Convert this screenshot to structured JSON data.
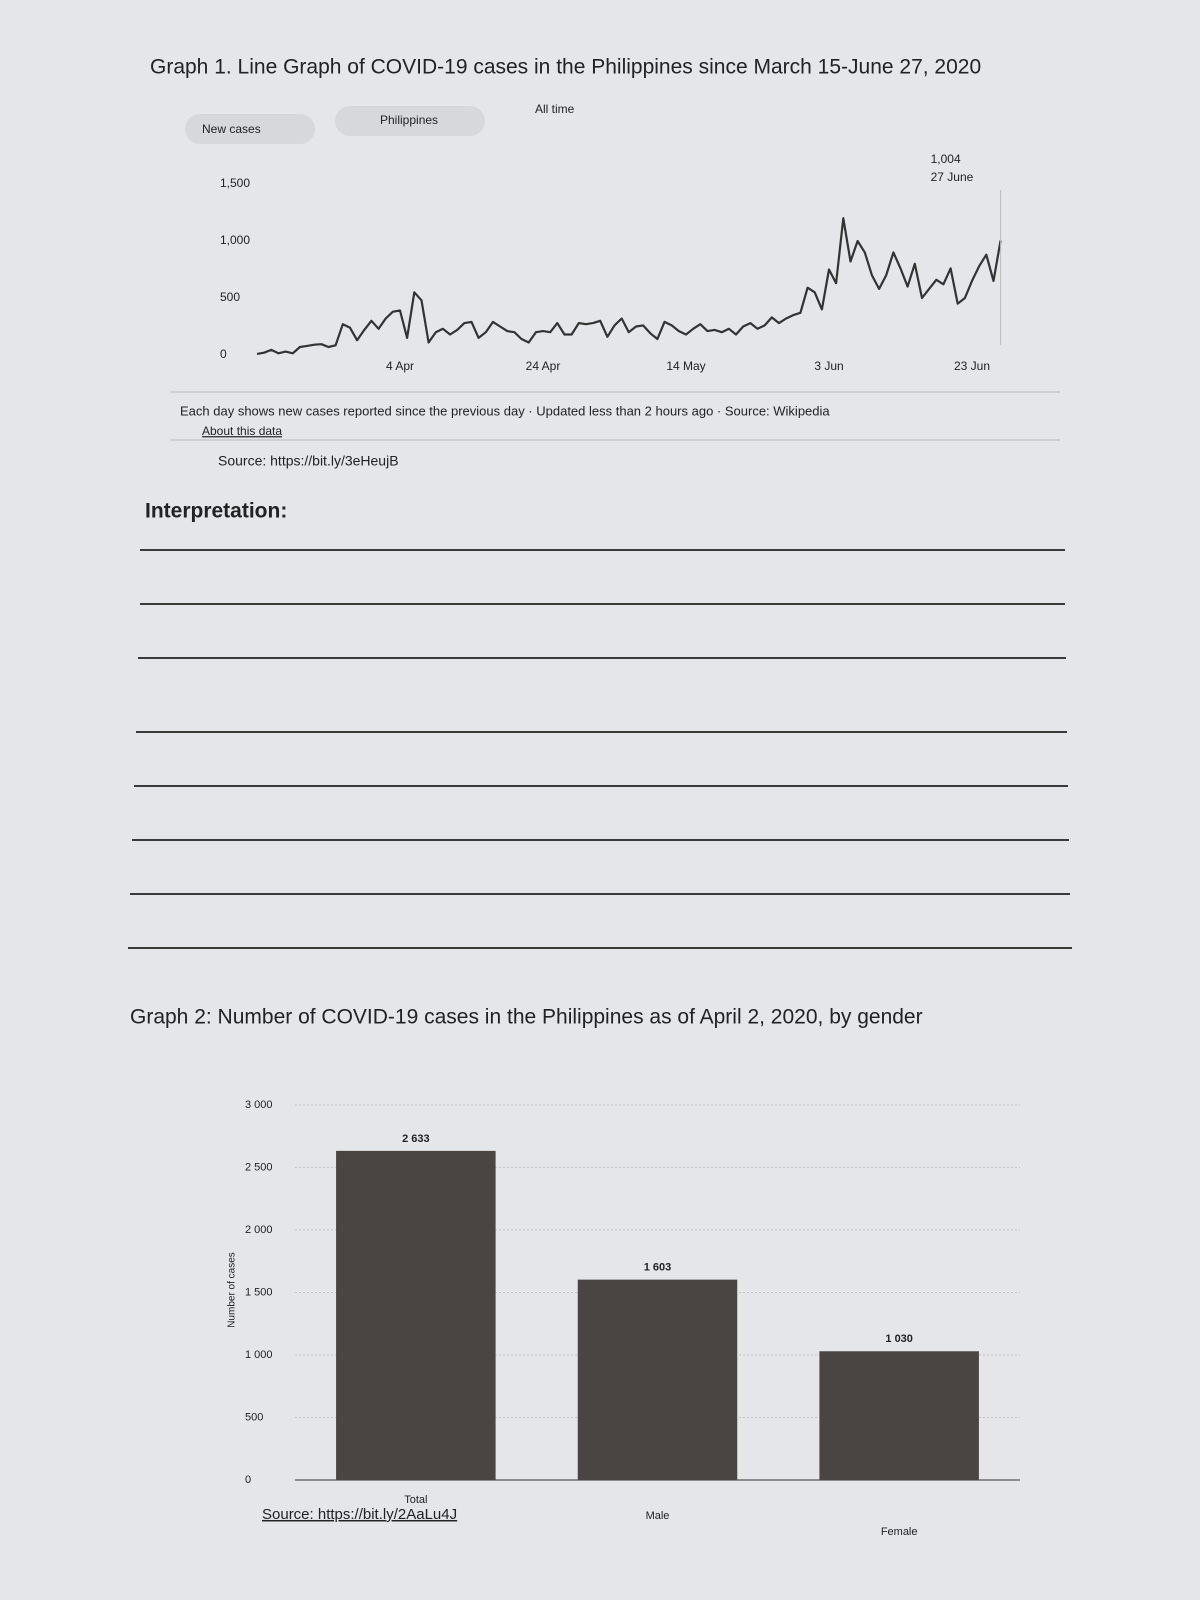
{
  "chart_data": [
    {
      "type": "line",
      "title": "Graph 1. Line Graph of COVID-19 cases in the Philippines since March 15-June 27, 2020",
      "controls": [
        "New cases",
        "Philippines",
        "All time"
      ],
      "categories": [
        null,
        null,
        null,
        null,
        null,
        null,
        null,
        null,
        null,
        null,
        null,
        null,
        null,
        null,
        null,
        null,
        null,
        null,
        null,
        null,
        "4 Apr",
        null,
        null,
        null,
        null,
        null,
        null,
        null,
        null,
        null,
        null,
        null,
        null,
        null,
        null,
        null,
        null,
        null,
        null,
        null,
        "24 Apr",
        null,
        null,
        null,
        null,
        null,
        null,
        null,
        null,
        null,
        null,
        null,
        null,
        null,
        null,
        null,
        null,
        null,
        null,
        null,
        "14 May",
        null,
        null,
        null,
        null,
        null,
        null,
        null,
        null,
        null,
        null,
        null,
        null,
        null,
        null,
        null,
        null,
        null,
        null,
        null,
        "3 Jun",
        null,
        null,
        null,
        null,
        null,
        null,
        null,
        null,
        null,
        null,
        null,
        null,
        null,
        null,
        null,
        null,
        null,
        null,
        null,
        "23 Jun",
        null,
        null,
        null,
        null
      ],
      "values": [
        10,
        20,
        45,
        15,
        30,
        15,
        70,
        80,
        90,
        95,
        70,
        85,
        270,
        240,
        130,
        220,
        300,
        230,
        320,
        380,
        390,
        150,
        550,
        480,
        110,
        200,
        230,
        180,
        220,
        280,
        290,
        150,
        200,
        290,
        250,
        210,
        200,
        140,
        110,
        200,
        210,
        200,
        280,
        180,
        180,
        280,
        270,
        280,
        300,
        160,
        260,
        320,
        200,
        250,
        260,
        190,
        140,
        290,
        260,
        210,
        180,
        230,
        270,
        210,
        220,
        200,
        230,
        180,
        250,
        280,
        230,
        260,
        330,
        280,
        320,
        350,
        370,
        590,
        550,
        400,
        750,
        630,
        1200,
        820,
        1000,
        900,
        700,
        580,
        700,
        900,
        760,
        600,
        800,
        500,
        580,
        660,
        620,
        760,
        450,
        500,
        650,
        780,
        880,
        650,
        1004
      ],
      "color": "#333333",
      "ylim": [
        0,
        1750
      ],
      "yticks": [
        0,
        500,
        {
          "value": 1000,
          "label": "1,000"
        },
        {
          "value": 1500,
          "label": "1,500"
        }
      ],
      "annotation": {
        "value_label": "1,004",
        "date": "27 June"
      },
      "note": "Each day shows new cases reported since the previous day · Updated less than 2 hours ago · Source: Wikipedia",
      "about": "About this data",
      "source": "Source: https://bit.ly/3eHeujB"
    },
    {
      "type": "bar",
      "title": "Graph 2: Number of COVID-19 cases in the Philippines as of April 2, 2020, by gender",
      "y_label": "Number of cases",
      "categories": [
        "Total",
        "Male",
        "Female"
      ],
      "values": [
        2633,
        1603,
        1030
      ],
      "value_labels": [
        "2 633",
        "1 603",
        "1 030"
      ],
      "color": "#4a4543",
      "ylim": [
        0,
        3000
      ],
      "yticks": [
        0,
        500,
        {
          "value": 1000,
          "label": "1 000"
        },
        {
          "value": 1500,
          "label": "1 500"
        },
        {
          "value": 2000,
          "label": "2 000"
        },
        {
          "value": 2500,
          "label": "2 500"
        },
        {
          "value": 3000,
          "label": "3 000"
        }
      ],
      "grid": true,
      "source": "Source: https://bit.ly/2AaLu4J"
    }
  ],
  "interpretation": {
    "heading": "Interpretation:"
  }
}
